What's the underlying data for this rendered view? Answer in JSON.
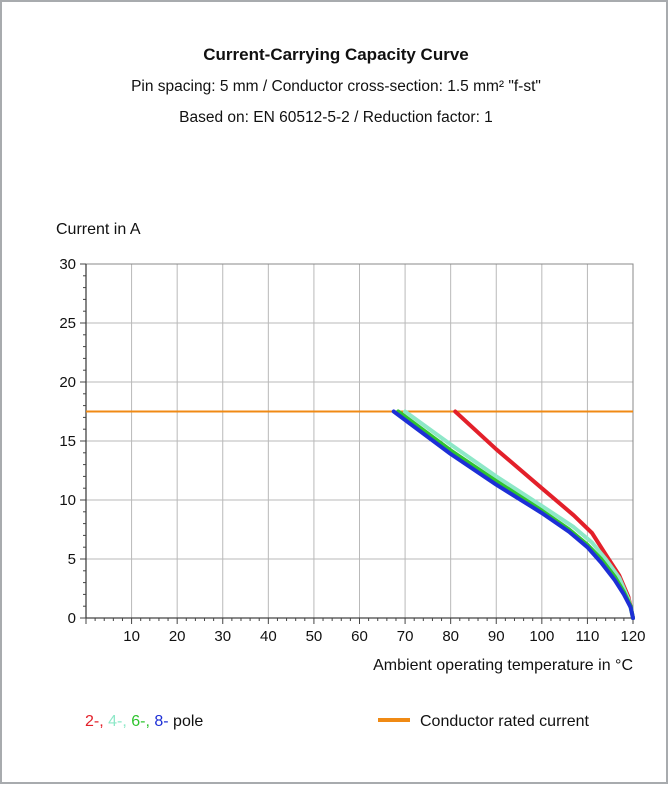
{
  "chart_data": {
    "type": "line",
    "title": "Current-Carrying Capacity Curve",
    "subtitle_lines": [
      "Pin spacing: 5 mm / Conductor cross-section: 1.5 mm² \"f-st\"",
      "Based on: EN 60512-5-2 / Reduction factor: 1"
    ],
    "ylabel": "Current in A",
    "xlabel": "Ambient operating temperature in °C",
    "xlim": [
      0,
      120
    ],
    "ylim": [
      0,
      30
    ],
    "x_ticks": [
      10,
      20,
      30,
      40,
      50,
      60,
      70,
      80,
      90,
      100,
      110,
      120
    ],
    "y_ticks": [
      0,
      5,
      10,
      15,
      20,
      25,
      30
    ],
    "grid": true,
    "series": [
      {
        "label": "2-",
        "color": "#e3202a",
        "points": [
          [
            81,
            17.5
          ],
          [
            90,
            14.3
          ],
          [
            100,
            11.0
          ],
          [
            107,
            8.7
          ],
          [
            111,
            7.2
          ],
          [
            114,
            5.4
          ],
          [
            117,
            3.6
          ],
          [
            119,
            1.8
          ],
          [
            120,
            0
          ]
        ]
      },
      {
        "label": "4-",
        "color": "#8ee8c8",
        "points": [
          [
            70,
            17.5
          ],
          [
            80,
            14.7
          ],
          [
            90,
            12.0
          ],
          [
            100,
            9.5
          ],
          [
            107,
            7.7
          ],
          [
            111,
            6.4
          ],
          [
            114,
            5.0
          ],
          [
            117,
            3.4
          ],
          [
            119,
            1.6
          ],
          [
            120,
            0
          ]
        ]
      },
      {
        "label": "6-",
        "color": "#2fc42f",
        "points": [
          [
            68.5,
            17.5
          ],
          [
            80,
            14.2
          ],
          [
            90,
            11.6
          ],
          [
            100,
            9.1
          ],
          [
            106,
            7.5
          ],
          [
            110,
            6.2
          ],
          [
            113,
            5.0
          ],
          [
            116,
            3.5
          ],
          [
            118,
            2.2
          ],
          [
            119.5,
            1.0
          ],
          [
            120,
            0
          ]
        ]
      },
      {
        "label": "8-",
        "color": "#1d2fd6",
        "points": [
          [
            67.5,
            17.5
          ],
          [
            80,
            13.9
          ],
          [
            90,
            11.3
          ],
          [
            100,
            8.9
          ],
          [
            106,
            7.3
          ],
          [
            110,
            6.0
          ],
          [
            113,
            4.7
          ],
          [
            116,
            3.2
          ],
          [
            118,
            2.0
          ],
          [
            119.5,
            0.9
          ],
          [
            120,
            0
          ]
        ]
      }
    ],
    "rated_current": {
      "label": "Conductor rated current",
      "value": 17.5,
      "color": "#f08a14"
    },
    "legend": {
      "pole_items": [
        {
          "text": "2-,",
          "color": "#e3202a"
        },
        {
          "text": "4-,",
          "color": "#8ee8c8"
        },
        {
          "text": "6-,",
          "color": "#2fc42f"
        },
        {
          "text": "8-",
          "color": "#1d2fd6"
        }
      ],
      "pole_suffix": "pole",
      "placement": "bottom"
    }
  }
}
